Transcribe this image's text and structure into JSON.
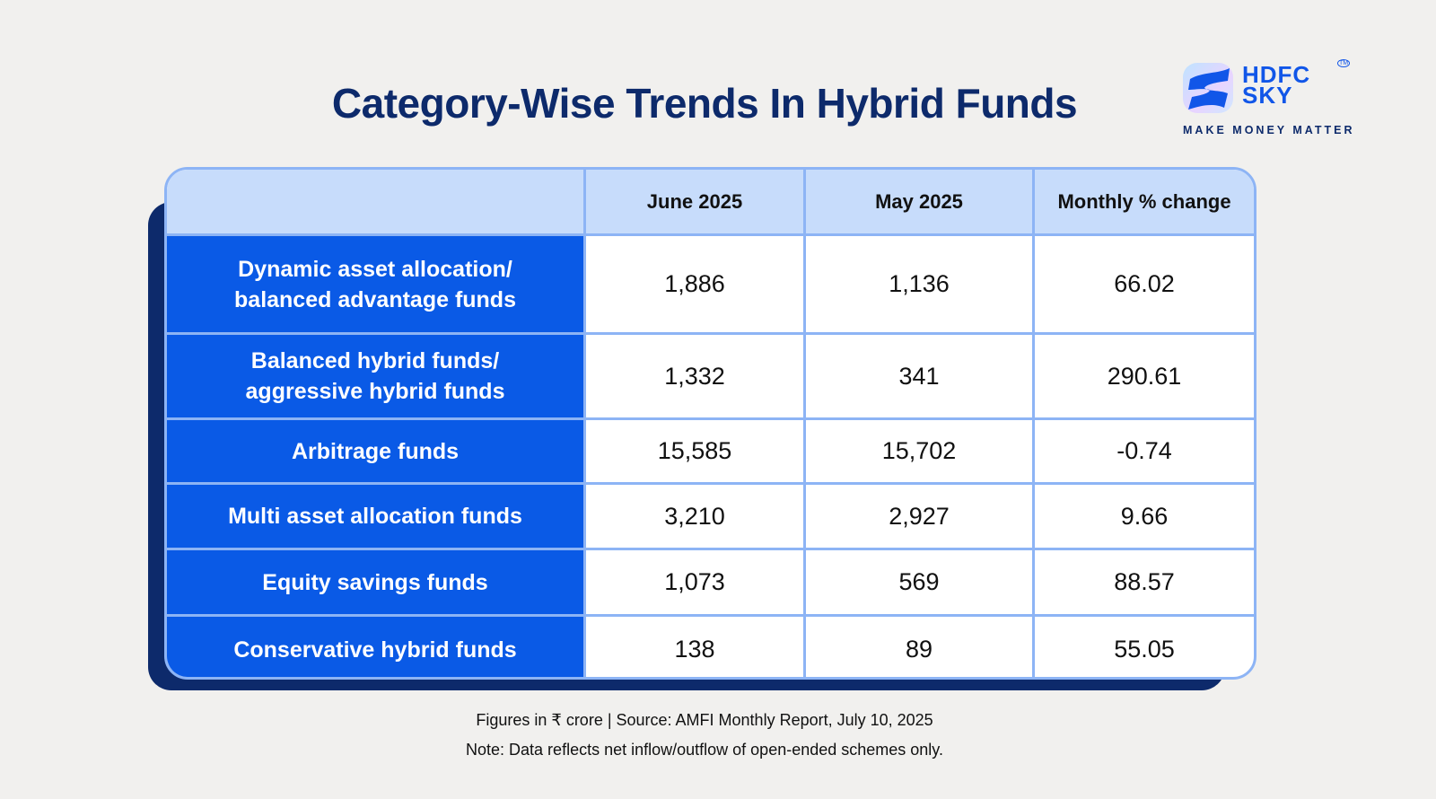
{
  "title": "Category-Wise Trends In Hybrid Funds",
  "logo": {
    "brand_line1": "HDFC",
    "brand_line2": "SKY",
    "tagline": "MAKE MONEY MATTER",
    "accent": "#1156e8"
  },
  "table": {
    "headers": [
      "",
      "June 2025",
      "May 2025",
      "Monthly % change"
    ],
    "rows": [
      {
        "category": "Dynamic asset allocation/ balanced advantage funds",
        "june": "1,886",
        "may": "1,136",
        "change": "66.02"
      },
      {
        "category": "Balanced hybrid funds/ aggressive hybrid funds",
        "june": "1,332",
        "may": "341",
        "change": "290.61"
      },
      {
        "category": "Arbitrage funds",
        "june": "15,585",
        "may": "15,702",
        "change": "-0.74"
      },
      {
        "category": "Multi asset allocation funds",
        "june": "3,210",
        "may": "2,927",
        "change": "9.66"
      },
      {
        "category": "Equity savings funds",
        "june": "1,073",
        "may": "569",
        "change": "88.57"
      },
      {
        "category": "Conservative hybrid funds",
        "june": "138",
        "may": "89",
        "change": "55.05"
      }
    ]
  },
  "footer": {
    "source": "Figures in ₹ crore  |  Source: AMFI Monthly Report, July 10, 2025",
    "note": "Note: Data reflects net inflow/outflow of open-ended schemes only."
  },
  "colors": {
    "label_cell": "#0a5ae6",
    "header_bg": "#c7dcfb",
    "border": "#8db4f5",
    "title": "#0d2a6b"
  }
}
